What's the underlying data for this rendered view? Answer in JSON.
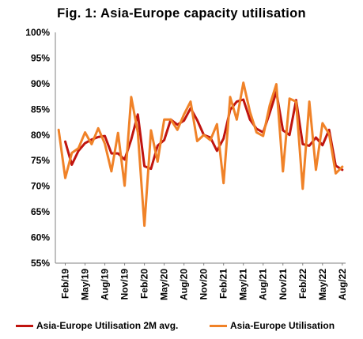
{
  "chart_data": {
    "type": "line",
    "title": "Fig. 1: Asia-Europe capacity utilisation",
    "ylim": [
      55,
      100
    ],
    "yticks": [
      "55%",
      "60%",
      "65%",
      "70%",
      "75%",
      "80%",
      "85%",
      "90%",
      "95%",
      "100%"
    ],
    "xticks": [
      "Feb/19",
      "May/19",
      "Aug/19",
      "Nov/19",
      "Feb/20",
      "May/20",
      "Aug/20",
      "Nov/20",
      "Feb/21",
      "May/21",
      "Aug/21",
      "Nov/21",
      "Feb/22",
      "May/22",
      "Aug/22"
    ],
    "x": [
      "Jan/19",
      "Feb/19",
      "Mar/19",
      "Apr/19",
      "May/19",
      "Jun/19",
      "Jul/19",
      "Aug/19",
      "Sep/19",
      "Oct/19",
      "Nov/19",
      "Dec/19",
      "Jan/20",
      "Feb/20",
      "Mar/20",
      "Apr/20",
      "May/20",
      "Jun/20",
      "Jul/20",
      "Aug/20",
      "Sep/20",
      "Oct/20",
      "Nov/20",
      "Dec/20",
      "Jan/21",
      "Feb/21",
      "Mar/21",
      "Apr/21",
      "May/21",
      "Jun/21",
      "Jul/21",
      "Aug/21",
      "Sep/21",
      "Oct/21",
      "Nov/21",
      "Dec/21",
      "Jan/22",
      "Feb/22",
      "Mar/22",
      "Apr/22",
      "May/22",
      "Jun/22",
      "Jul/22",
      "Aug/22"
    ],
    "grid": false,
    "legend_position": "bottom",
    "series": [
      {
        "name": "Asia-Europe Utilisation 2M avg.",
        "color": "#c0140f",
        "values": [
          null,
          78.7,
          74.2,
          76.9,
          78.4,
          79.1,
          79.6,
          79.8,
          76.4,
          76.4,
          75.2,
          79.1,
          84.0,
          73.9,
          73.4,
          77.9,
          79.0,
          83.0,
          82.0,
          82.8,
          85.2,
          82.9,
          80.0,
          79.5,
          76.9,
          79.3,
          84.9,
          86.5,
          86.9,
          83.0,
          81.2,
          80.5,
          84.3,
          88.4,
          80.9,
          80.0,
          86.8,
          78.2,
          77.9,
          79.5,
          78.0,
          81.0,
          74.0,
          73.2
        ]
      },
      {
        "name": "Asia-Europe Utilisation",
        "color": "#f08228",
        "values": [
          81.0,
          71.6,
          76.5,
          77.4,
          80.5,
          78.2,
          81.3,
          78.3,
          72.9,
          80.4,
          70.1,
          87.4,
          80.5,
          62.3,
          80.9,
          74.8,
          83.0,
          83.0,
          81.0,
          84.0,
          86.5,
          78.8,
          80.0,
          79.0,
          82.1,
          70.6,
          87.4,
          83.0,
          90.2,
          84.5,
          80.5,
          79.8,
          85.8,
          89.9,
          72.9,
          87.1,
          86.5,
          69.5,
          86.5,
          73.2,
          82.3,
          80.2,
          72.5,
          73.8
        ]
      }
    ]
  }
}
